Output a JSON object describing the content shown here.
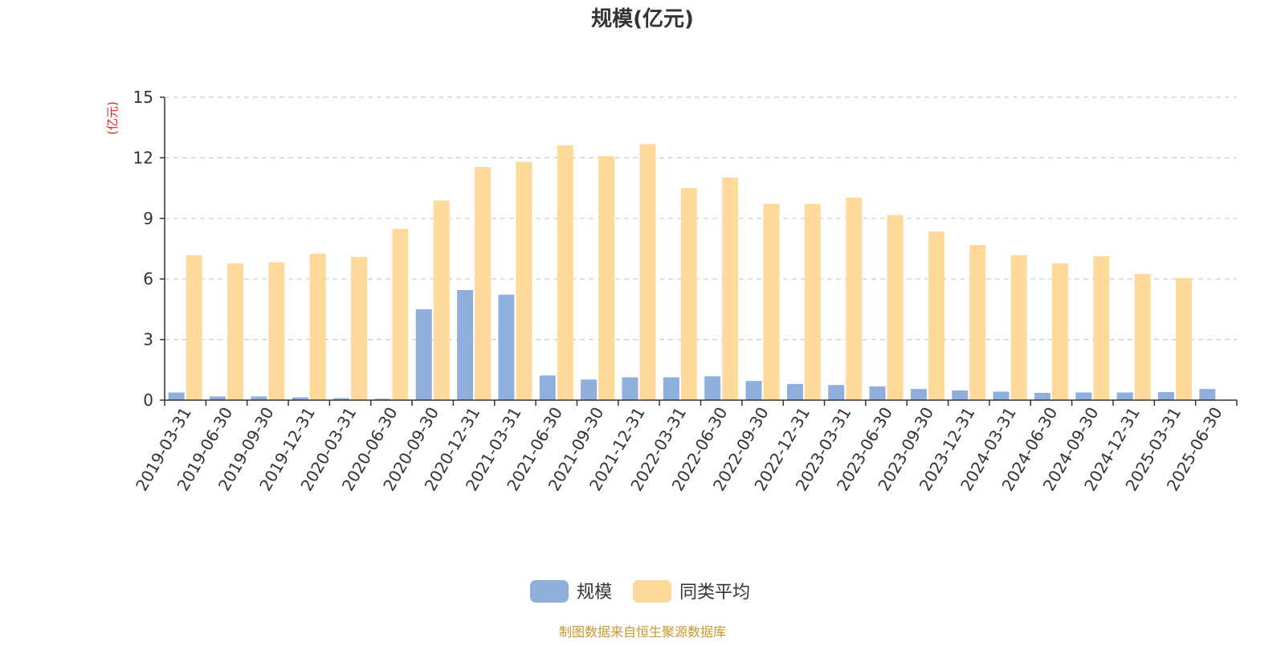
{
  "chart_data": {
    "type": "bar",
    "title": "规模(亿元)",
    "ylabel": "(亿元)",
    "xlabel": "",
    "ylim": [
      0,
      15
    ],
    "yticks": [
      0,
      3,
      6,
      9,
      12,
      15
    ],
    "grid": true,
    "legend_position": "bottom-center",
    "categories": [
      "2019-03-31",
      "2019-06-30",
      "2019-09-30",
      "2019-12-31",
      "2020-03-31",
      "2020-06-30",
      "2020-09-30",
      "2020-12-31",
      "2021-03-31",
      "2021-06-30",
      "2021-09-30",
      "2021-12-31",
      "2022-03-31",
      "2022-06-30",
      "2022-09-30",
      "2022-12-31",
      "2023-03-31",
      "2023-06-30",
      "2023-09-30",
      "2023-12-31",
      "2024-03-31",
      "2024-06-30",
      "2024-09-30",
      "2024-12-31",
      "2025-03-31",
      "2025-06-30"
    ],
    "series": [
      {
        "name": "规模",
        "color": "#8eaedb",
        "values": [
          0.38,
          0.18,
          0.18,
          0.14,
          0.1,
          0.07,
          4.5,
          5.45,
          5.22,
          1.22,
          1.02,
          1.13,
          1.13,
          1.18,
          0.95,
          0.8,
          0.75,
          0.68,
          0.55,
          0.48,
          0.42,
          0.36,
          0.38,
          0.38,
          0.4,
          0.55
        ]
      },
      {
        "name": "同类平均",
        "color": "#ffd99a",
        "values": [
          7.18,
          6.78,
          6.82,
          7.25,
          7.1,
          8.48,
          9.88,
          11.55,
          11.8,
          12.62,
          12.08,
          12.68,
          10.5,
          11.02,
          9.72,
          9.72,
          10.03,
          9.17,
          8.35,
          7.68,
          7.18,
          6.78,
          7.12,
          6.25,
          6.05,
          null
        ]
      }
    ]
  },
  "footer": {
    "source": "制图数据来自恒生聚源数据库",
    "source_color": "#c8962e"
  }
}
